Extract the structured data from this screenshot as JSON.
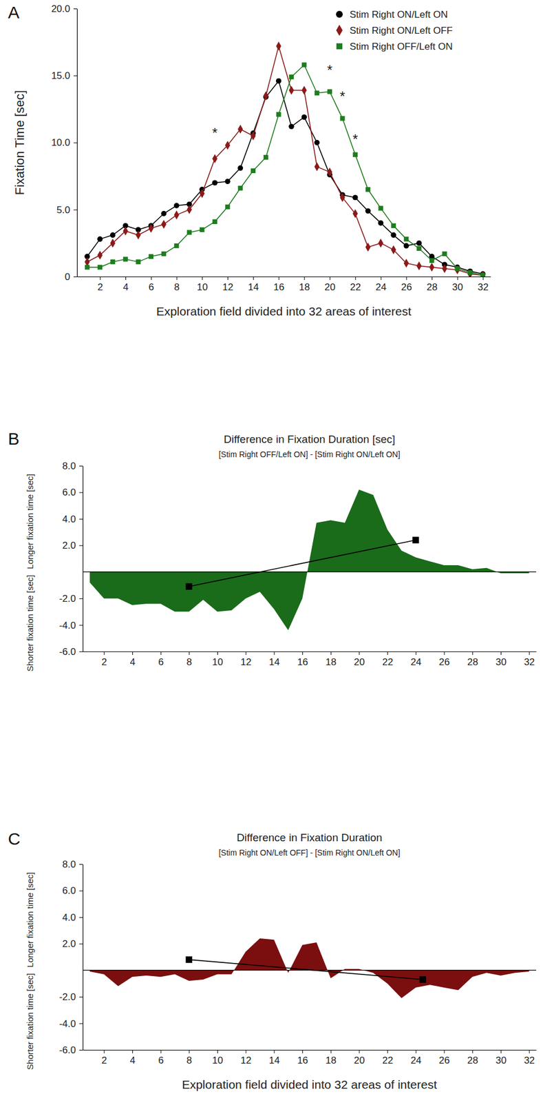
{
  "chart_data": [
    {
      "panel": "A",
      "type": "line",
      "xlabel": "Exploration field divided into 32 areas of interest",
      "ylabel": "Fixation Time [sec]",
      "x": [
        1,
        2,
        3,
        4,
        5,
        6,
        7,
        8,
        9,
        10,
        11,
        12,
        13,
        14,
        15,
        16,
        17,
        18,
        19,
        20,
        21,
        22,
        23,
        24,
        25,
        26,
        27,
        28,
        29,
        30,
        31,
        32
      ],
      "xlim": [
        0.2,
        32.6
      ],
      "xticks": [
        2,
        4,
        6,
        8,
        10,
        12,
        14,
        16,
        18,
        20,
        22,
        24,
        26,
        28,
        30,
        32
      ],
      "ylim": [
        0,
        20
      ],
      "yticks": [
        0,
        {
          "value": 5,
          "label": "5.0"
        },
        {
          "value": 10,
          "label": "10.0"
        },
        {
          "value": 15,
          "label": "15.0"
        },
        {
          "value": 20,
          "label": "20.0"
        }
      ],
      "grid": false,
      "legend": "upper right",
      "series": [
        {
          "name": "Stim Right ON/Left ON",
          "color": "#000000",
          "marker": "circle",
          "values": [
            1.5,
            2.8,
            3.1,
            3.8,
            3.5,
            3.8,
            4.7,
            5.3,
            5.4,
            6.5,
            7.0,
            7.1,
            8.1,
            10.7,
            13.4,
            14.6,
            11.2,
            11.9,
            10.0,
            7.6,
            6.1,
            5.9,
            4.9,
            4.0,
            3.1,
            2.3,
            2.5,
            1.5,
            0.9,
            0.7,
            0.4,
            0.2
          ]
        },
        {
          "name": "Stim Right ON/Left OFF",
          "color": "#8b1a1a",
          "marker": "diamond",
          "values": [
            1.1,
            1.6,
            2.5,
            3.4,
            3.1,
            3.6,
            3.9,
            4.6,
            5.0,
            6.2,
            8.8,
            9.8,
            11.0,
            10.5,
            13.5,
            17.2,
            13.9,
            13.9,
            8.2,
            7.8,
            5.9,
            4.7,
            2.2,
            2.5,
            2.0,
            1.0,
            0.8,
            0.7,
            0.6,
            0.5,
            0.2,
            0.1
          ]
        },
        {
          "name": "Stim Right OFF/Left ON",
          "color": "#1e7d1e",
          "marker": "square",
          "values": [
            0.7,
            0.7,
            1.1,
            1.3,
            1.1,
            1.5,
            1.7,
            2.3,
            3.3,
            3.5,
            4.1,
            5.2,
            6.6,
            7.9,
            8.9,
            12.1,
            14.9,
            15.8,
            13.7,
            13.8,
            11.8,
            9.1,
            6.5,
            5.1,
            3.8,
            2.8,
            2.1,
            1.2,
            1.7,
            0.6,
            0.3,
            0.1
          ]
        }
      ],
      "annotations": [
        {
          "text": "*",
          "x": 11,
          "y": 10.8
        },
        {
          "text": "*",
          "x": 20,
          "y": 15.5
        },
        {
          "text": "*",
          "x": 21,
          "y": 13.5
        },
        {
          "text": "*",
          "x": 22,
          "y": 10.3
        }
      ]
    },
    {
      "panel": "B",
      "type": "area",
      "title": "Difference in Fixation Duration [sec]",
      "subtitle": "[Stim Right OFF/Left ON] - [Stim Right ON/Left ON]",
      "ylabel_upper": "Longer fixation time [sec]",
      "ylabel_lower": "Shorter fixation time [sec]",
      "x": [
        1,
        2,
        3,
        4,
        5,
        6,
        7,
        8,
        9,
        10,
        11,
        12,
        13,
        14,
        15,
        16,
        17,
        18,
        19,
        20,
        21,
        22,
        23,
        24,
        25,
        26,
        27,
        28,
        29,
        30,
        31,
        32
      ],
      "xlim": [
        0.5,
        32.5
      ],
      "xticks": [
        2,
        4,
        6,
        8,
        10,
        12,
        14,
        16,
        18,
        20,
        22,
        24,
        26,
        28,
        30,
        32
      ],
      "ylim": [
        -6,
        8
      ],
      "yticks": [
        {
          "value": -6,
          "label": "-6.0"
        },
        {
          "value": -4,
          "label": "-4.0"
        },
        {
          "value": -2,
          "label": "-2.0"
        },
        {
          "value": 2,
          "label": "2.0"
        },
        {
          "value": 4,
          "label": "4.0"
        },
        {
          "value": 6,
          "label": "6.0"
        },
        {
          "value": 8,
          "label": "8.0"
        }
      ],
      "grid": false,
      "series": [
        {
          "type": "area",
          "color": "#1a6b1a",
          "values": [
            -0.8,
            -2.0,
            -2.0,
            -2.5,
            -2.4,
            -2.4,
            -3.0,
            -3.0,
            -2.1,
            -3.0,
            -2.9,
            -2.0,
            -1.5,
            -2.8,
            -4.4,
            -2.0,
            3.7,
            3.9,
            3.7,
            6.2,
            5.8,
            3.2,
            1.6,
            1.1,
            0.8,
            0.5,
            0.5,
            0.2,
            0.3,
            -0.1,
            -0.1,
            -0.1
          ]
        },
        {
          "type": "line",
          "color": "#000000",
          "marker": "square",
          "x": [
            8,
            24
          ],
          "values": [
            -1.1,
            2.4
          ]
        }
      ]
    },
    {
      "panel": "C",
      "type": "area",
      "title": "Difference in Fixation Duration",
      "subtitle": "[Stim Right ON/Left OFF] - [Stim Right ON/Left ON]",
      "ylabel_upper": "Longer fixation time [sec]",
      "ylabel_lower": "Shorter fixation time [sec]",
      "xlabel": "Exploration field divided into 32 areas of interest",
      "x": [
        1,
        2,
        3,
        4,
        5,
        6,
        7,
        8,
        9,
        10,
        11,
        12,
        13,
        14,
        15,
        16,
        17,
        18,
        19,
        20,
        21,
        22,
        23,
        24,
        25,
        26,
        27,
        28,
        29,
        30,
        31,
        32
      ],
      "xlim": [
        0.5,
        32.5
      ],
      "xticks": [
        2,
        4,
        6,
        8,
        10,
        12,
        14,
        16,
        18,
        20,
        22,
        24,
        26,
        28,
        30,
        32
      ],
      "ylim": [
        -6,
        8
      ],
      "yticks": [
        {
          "value": -6,
          "label": "-6.0"
        },
        {
          "value": -4,
          "label": "-4.0"
        },
        {
          "value": -2,
          "label": "-2.0"
        },
        {
          "value": 2,
          "label": "2.0"
        },
        {
          "value": 4,
          "label": "4.0"
        },
        {
          "value": 6,
          "label": "6.0"
        },
        {
          "value": 8,
          "label": "8.0"
        }
      ],
      "grid": false,
      "series": [
        {
          "type": "area",
          "color": "#7b0f0f",
          "values": [
            -0.1,
            -0.3,
            -1.2,
            -0.5,
            -0.4,
            -0.5,
            -0.3,
            -0.8,
            -0.7,
            -0.3,
            -0.3,
            1.4,
            2.4,
            2.3,
            -0.2,
            1.9,
            2.1,
            -0.6,
            0.1,
            0.1,
            -0.2,
            -1.0,
            -2.1,
            -1.3,
            -1.1,
            -1.3,
            -1.5,
            -0.5,
            -0.2,
            -0.4,
            -0.2,
            -0.1
          ]
        },
        {
          "type": "line",
          "color": "#000000",
          "marker": "square",
          "x": [
            8,
            24.5
          ],
          "values": [
            0.8,
            -0.7
          ]
        }
      ]
    }
  ]
}
